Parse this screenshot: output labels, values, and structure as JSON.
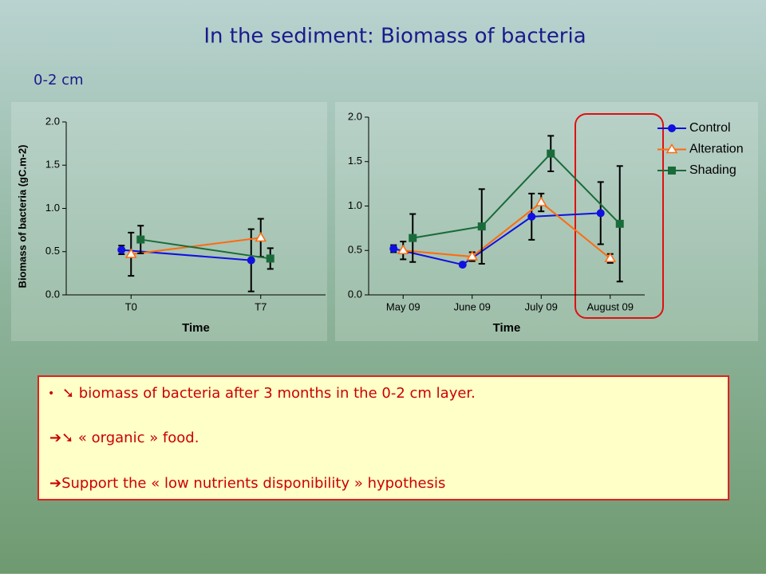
{
  "title": "In the sediment: Biomass of bacteria",
  "subtitle": "0-2 cm",
  "notes": [
    "➘ biomass of bacteria after 3 months in the 0-2 cm layer.",
    "➔➘ « organic » food.",
    "➔Support the « low nutrients disponibility » hypothesis"
  ],
  "chart_data": [
    {
      "type": "line",
      "ylabel": "Biomass of bacteria  (gC.m-2)",
      "xlabel": "Time",
      "categories": [
        "T0",
        "T7"
      ],
      "ylim": [
        0,
        2
      ],
      "yticks": [
        {
          "value": 0,
          "label": "0.0"
        },
        {
          "value": 0.5,
          "label": "0.5"
        },
        {
          "value": 1,
          "label": "1.0"
        },
        {
          "value": 1.5,
          "label": "1.5"
        },
        {
          "value": 2,
          "label": "2.0"
        }
      ],
      "series": [
        {
          "color": "#1010e0",
          "marker": "circle",
          "values": [
            0.52,
            0.4
          ],
          "errors": [
            0.05,
            0.36
          ]
        },
        {
          "color": "#ff6a10",
          "marker": "triangle",
          "values": [
            0.47,
            0.66
          ],
          "errors": [
            0.25,
            0.22
          ]
        },
        {
          "color": "#1a6b3a",
          "marker": "square",
          "values": [
            0.64,
            0.42
          ],
          "errors": [
            0.16,
            0.12
          ]
        }
      ]
    },
    {
      "type": "line",
      "xlabel": "Time",
      "categories": [
        "May 09",
        "June 09",
        "July 09",
        "August 09"
      ],
      "ylim": [
        0,
        2
      ],
      "yticks": [
        {
          "value": 0,
          "label": "0.0"
        },
        {
          "value": 0.5,
          "label": "0.5"
        },
        {
          "value": 1,
          "label": "1.0"
        },
        {
          "value": 1.5,
          "label": "1.5"
        },
        {
          "value": 2,
          "label": "2.0"
        }
      ],
      "legend": "right",
      "series": [
        {
          "name": "Control",
          "color": "#1010e0",
          "marker": "circle",
          "values": [
            0.52,
            0.34,
            0.88,
            0.92
          ],
          "errors": [
            0.04,
            0.02,
            0.26,
            0.35
          ]
        },
        {
          "name": "Alteration",
          "color": "#ff6a10",
          "marker": "triangle",
          "values": [
            0.5,
            0.43,
            1.04,
            0.41
          ],
          "errors": [
            0.1,
            0.05,
            0.1,
            0.05
          ]
        },
        {
          "name": "Shading",
          "color": "#1a6b3a",
          "marker": "square",
          "values": [
            0.64,
            0.77,
            1.59,
            0.8
          ],
          "errors": [
            0.27,
            0.42,
            0.2,
            0.65
          ]
        }
      ]
    }
  ]
}
